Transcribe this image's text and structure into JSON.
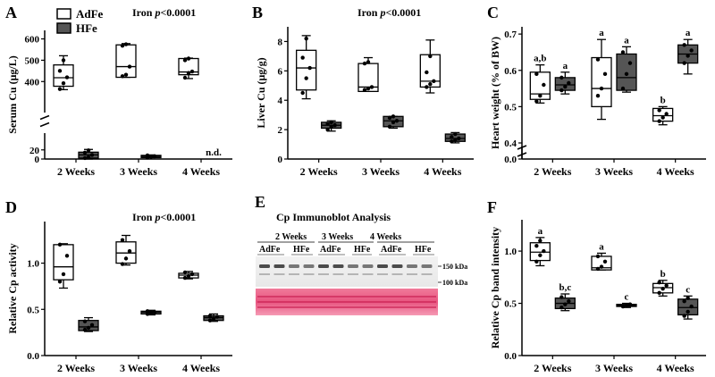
{
  "legend": {
    "labels": [
      "AdFe",
      "HFe"
    ]
  },
  "colors": {
    "adfe_fill": "#ffffff",
    "hfe_fill": "#555555",
    "stroke": "#000000"
  },
  "western": {
    "letter": "E",
    "title": "Cp Immunoblot Analysis",
    "groups": [
      "2 Weeks",
      "3 Weeks",
      "4 Weeks"
    ],
    "lane_labels": [
      "AdFe",
      "HFe",
      "AdFe",
      "HFe",
      "AdFe",
      "HFe"
    ],
    "markers": [
      "150 kDa",
      "100 kDa"
    ]
  },
  "chart_data": [
    {
      "type": "box",
      "letter": "A",
      "ylabel": "Serum Cu (μg/L)",
      "title": "Iron p<0.0001",
      "title_prefix": "Iron ",
      "title_italic": "p",
      "title_suffix": "<0.0001",
      "categories": [
        "2 Weeks",
        "3 Weeks",
        "4 Weeks"
      ],
      "axis_break": true,
      "upper_ylim": [
        330,
        640
      ],
      "upper_ticks": [
        400,
        500,
        600
      ],
      "lower_ylim": [
        0,
        45
      ],
      "lower_ticks": [
        0,
        20
      ],
      "annotations": [
        {
          "group": 2,
          "series": 1,
          "text": "n.d."
        }
      ],
      "series": [
        {
          "name": "AdFe",
          "boxes": [
            {
              "min": 362,
              "q1": 378,
              "med": 418,
              "q3": 478,
              "max": 521,
              "points": [
                365,
                392,
                420,
                450,
                500
              ]
            },
            {
              "min": 420,
              "q1": 420,
              "med": 470,
              "q3": 572,
              "max": 578,
              "points": [
                425,
                432,
                470,
                568,
                575
              ]
            },
            {
              "min": 414,
              "q1": 432,
              "med": 445,
              "q3": 508,
              "max": 510,
              "points": [
                418,
                440,
                447,
                500,
                508
              ]
            }
          ]
        },
        {
          "name": "HFe",
          "boxes": [
            {
              "min": 0,
              "q1": 2,
              "med": 9,
              "q3": 15,
              "max": 21,
              "points": [
                2,
                4,
                9,
                14,
                19
              ]
            },
            {
              "min": 3,
              "q1": 3,
              "med": 6,
              "q3": 8,
              "max": 9,
              "points": [
                3,
                5,
                6,
                8
              ]
            },
            null
          ]
        }
      ]
    },
    {
      "type": "box",
      "letter": "B",
      "ylabel": "Liver Cu (μg/g)",
      "title": "Iron p<0.0001",
      "title_prefix": "Iron ",
      "title_italic": "p",
      "title_suffix": "<0.0001",
      "categories": [
        "2 Weeks",
        "3 Weeks",
        "4 Weeks"
      ],
      "ylim": [
        0,
        9
      ],
      "yticks": [
        0,
        2,
        4,
        6,
        8
      ],
      "annotations": [],
      "series": [
        {
          "name": "AdFe",
          "boxes": [
            {
              "min": 4.1,
              "q1": 4.7,
              "med": 6.2,
              "q3": 7.4,
              "max": 8.4,
              "points": [
                4.5,
                5.5,
                6.2,
                6.9,
                8.2
              ]
            },
            {
              "min": 4.6,
              "q1": 4.6,
              "med": 4.9,
              "q3": 6.5,
              "max": 6.9,
              "points": [
                4.7,
                4.8,
                4.9,
                6.5,
                6.6
              ]
            },
            {
              "min": 4.5,
              "q1": 4.9,
              "med": 5.3,
              "q3": 7.1,
              "max": 8.1,
              "points": [
                4.9,
                5.1,
                5.3,
                5.9,
                7.0
              ]
            }
          ]
        },
        {
          "name": "HFe",
          "boxes": [
            {
              "min": 1.9,
              "q1": 2.1,
              "med": 2.3,
              "q3": 2.5,
              "max": 2.6,
              "points": [
                2.0,
                2.2,
                2.3,
                2.4,
                2.5
              ]
            },
            {
              "min": 2.1,
              "q1": 2.2,
              "med": 2.6,
              "q3": 2.9,
              "max": 2.9,
              "points": [
                2.2,
                2.5,
                2.6,
                2.8,
                2.9
              ]
            },
            {
              "min": 1.1,
              "q1": 1.2,
              "med": 1.4,
              "q3": 1.7,
              "max": 1.8,
              "points": [
                1.2,
                1.3,
                1.4,
                1.5,
                1.7
              ]
            }
          ]
        }
      ]
    },
    {
      "type": "box",
      "letter": "C",
      "ylabel": "Heart weight (% of BW)",
      "title": "",
      "categories": [
        "2 Weeks",
        "3 Weeks",
        "4 Weeks"
      ],
      "axis_break": true,
      "upper_ylim": [
        0.4,
        0.72
      ],
      "upper_ticks": [
        0.4,
        0.5,
        0.6,
        0.7
      ],
      "lower_ylim": [
        0,
        0.05
      ],
      "lower_ticks": [
        0.0
      ],
      "annotations": [
        {
          "group": 0,
          "series": 0,
          "text": "a,b"
        },
        {
          "group": 0,
          "series": 1,
          "text": "a"
        },
        {
          "group": 1,
          "series": 0,
          "text": "a"
        },
        {
          "group": 1,
          "series": 1,
          "text": "a"
        },
        {
          "group": 2,
          "series": 0,
          "text": "b"
        },
        {
          "group": 2,
          "series": 1,
          "text": "a"
        }
      ],
      "series": [
        {
          "name": "AdFe",
          "boxes": [
            {
              "min": 0.51,
              "q1": 0.52,
              "med": 0.535,
              "q3": 0.595,
              "max": 0.615,
              "points": [
                0.515,
                0.53,
                0.56,
                0.59
              ]
            },
            {
              "min": 0.465,
              "q1": 0.5,
              "med": 0.55,
              "q3": 0.635,
              "max": 0.685,
              "points": [
                0.53,
                0.55,
                0.59,
                0.63
              ]
            },
            {
              "min": 0.45,
              "q1": 0.46,
              "med": 0.475,
              "q3": 0.495,
              "max": 0.5,
              "points": [
                0.46,
                0.47,
                0.48,
                0.49
              ]
            }
          ]
        },
        {
          "name": "HFe",
          "boxes": [
            {
              "min": 0.535,
              "q1": 0.545,
              "med": 0.56,
              "q3": 0.58,
              "max": 0.595,
              "points": [
                0.545,
                0.555,
                0.565,
                0.58
              ]
            },
            {
              "min": 0.54,
              "q1": 0.545,
              "med": 0.58,
              "q3": 0.645,
              "max": 0.665,
              "points": [
                0.55,
                0.59,
                0.62,
                0.65
              ]
            },
            {
              "min": 0.59,
              "q1": 0.62,
              "med": 0.645,
              "q3": 0.67,
              "max": 0.685,
              "points": [
                0.62,
                0.64,
                0.655,
                0.67
              ]
            }
          ]
        }
      ]
    },
    {
      "type": "box",
      "letter": "D",
      "ylabel": "Relative Cp activity",
      "title": "Iron p<0.0001",
      "title_prefix": "Iron ",
      "title_italic": "p",
      "title_suffix": "<0.0001",
      "categories": [
        "2 Weeks",
        "3 Weeks",
        "4 Weeks"
      ],
      "ylim": [
        0,
        1.45
      ],
      "yticks": [
        0.0,
        0.5,
        1.0
      ],
      "annotations": [],
      "series": [
        {
          "name": "AdFe",
          "boxes": [
            {
              "min": 0.73,
              "q1": 0.82,
              "med": 0.96,
              "q3": 1.2,
              "max": 1.21,
              "points": [
                0.8,
                0.88,
                1.08,
                1.2
              ]
            },
            {
              "min": 0.98,
              "q1": 1.0,
              "med": 1.11,
              "q3": 1.23,
              "max": 1.3,
              "points": [
                0.99,
                1.05,
                1.13,
                1.25
              ]
            },
            {
              "min": 0.83,
              "q1": 0.84,
              "med": 0.87,
              "q3": 0.89,
              "max": 0.91,
              "points": [
                0.84,
                0.86,
                0.88,
                0.9
              ]
            }
          ]
        },
        {
          "name": "HFe",
          "boxes": [
            {
              "min": 0.26,
              "q1": 0.27,
              "med": 0.31,
              "q3": 0.38,
              "max": 0.41,
              "points": [
                0.28,
                0.3,
                0.33,
                0.37
              ]
            },
            {
              "min": 0.44,
              "q1": 0.45,
              "med": 0.47,
              "q3": 0.48,
              "max": 0.49,
              "points": [
                0.45,
                0.46,
                0.47,
                0.48
              ]
            },
            {
              "min": 0.37,
              "q1": 0.38,
              "med": 0.41,
              "q3": 0.43,
              "max": 0.45,
              "points": [
                0.38,
                0.4,
                0.42,
                0.43
              ]
            }
          ]
        }
      ]
    },
    {
      "type": "box",
      "letter": "F",
      "ylabel": "Relative Cp band intensity",
      "title": "",
      "categories": [
        "2 Weeks",
        "3 Weeks",
        "4 Weeks"
      ],
      "ylim": [
        0,
        1.3
      ],
      "yticks": [
        0.0,
        0.5,
        1.0
      ],
      "annotations": [
        {
          "group": 0,
          "series": 0,
          "text": "a"
        },
        {
          "group": 0,
          "series": 1,
          "text": "b,c"
        },
        {
          "group": 1,
          "series": 0,
          "text": "a"
        },
        {
          "group": 1,
          "series": 1,
          "text": "c"
        },
        {
          "group": 2,
          "series": 0,
          "text": "b"
        },
        {
          "group": 2,
          "series": 1,
          "text": "c"
        }
      ],
      "series": [
        {
          "name": "AdFe",
          "boxes": [
            {
              "min": 0.86,
              "q1": 0.91,
              "med": 0.99,
              "q3": 1.08,
              "max": 1.13,
              "points": [
                0.9,
                0.96,
                1.0,
                1.05,
                1.1
              ]
            },
            {
              "min": 0.82,
              "q1": 0.82,
              "med": 0.84,
              "q3": 0.95,
              "max": 0.98,
              "points": [
                0.83,
                0.85,
                0.9,
                0.95
              ]
            },
            {
              "min": 0.57,
              "q1": 0.6,
              "med": 0.65,
              "q3": 0.69,
              "max": 0.72,
              "points": [
                0.6,
                0.64,
                0.67,
                0.7
              ]
            }
          ]
        },
        {
          "name": "HFe",
          "boxes": [
            {
              "min": 0.43,
              "q1": 0.45,
              "med": 0.5,
              "q3": 0.55,
              "max": 0.59,
              "points": [
                0.46,
                0.49,
                0.52,
                0.56
              ]
            },
            {
              "min": 0.46,
              "q1": 0.47,
              "med": 0.48,
              "q3": 0.49,
              "max": 0.5,
              "points": [
                0.47,
                0.48,
                0.49
              ]
            },
            {
              "min": 0.35,
              "q1": 0.39,
              "med": 0.46,
              "q3": 0.54,
              "max": 0.57,
              "points": [
                0.38,
                0.42,
                0.47,
                0.52,
                0.55
              ]
            }
          ]
        }
      ]
    }
  ]
}
